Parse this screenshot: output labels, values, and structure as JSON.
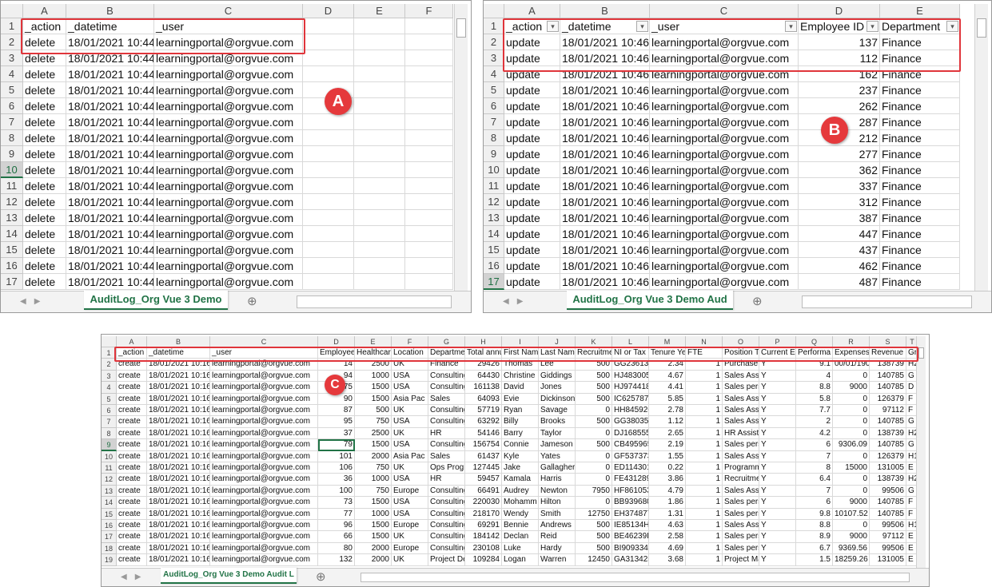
{
  "panels": [
    {
      "badge": "A",
      "tab": "AuditLog_Org Vue 3 Demo",
      "columns": [
        "A",
        "B",
        "C",
        "D",
        "E",
        "F"
      ],
      "row_numbers": [
        "1",
        "2",
        "3",
        "4",
        "5",
        "6",
        "7",
        "8",
        "9",
        "10",
        "11",
        "12",
        "13",
        "14",
        "15",
        "16",
        "17"
      ],
      "rows": [
        [
          "_action",
          "_datetime",
          "_user",
          "",
          "",
          ""
        ],
        [
          "delete",
          "18/01/2021 10:44",
          "learningportal@orgvue.com",
          "",
          "",
          ""
        ],
        [
          "delete",
          "18/01/2021 10:44",
          "learningportal@orgvue.com",
          "",
          "",
          ""
        ],
        [
          "delete",
          "18/01/2021 10:44",
          "learningportal@orgvue.com",
          "",
          "",
          ""
        ],
        [
          "delete",
          "18/01/2021 10:44",
          "learningportal@orgvue.com",
          "",
          "",
          ""
        ],
        [
          "delete",
          "18/01/2021 10:44",
          "learningportal@orgvue.com",
          "",
          "",
          ""
        ],
        [
          "delete",
          "18/01/2021 10:44",
          "learningportal@orgvue.com",
          "",
          "",
          ""
        ],
        [
          "delete",
          "18/01/2021 10:44",
          "learningportal@orgvue.com",
          "",
          "",
          ""
        ],
        [
          "delete",
          "18/01/2021 10:44",
          "learningportal@orgvue.com",
          "",
          "",
          ""
        ],
        [
          "delete",
          "18/01/2021 10:44",
          "learningportal@orgvue.com",
          "",
          "",
          ""
        ],
        [
          "delete",
          "18/01/2021 10:44",
          "learningportal@orgvue.com",
          "",
          "",
          ""
        ],
        [
          "delete",
          "18/01/2021 10:44",
          "learningportal@orgvue.com",
          "",
          "",
          ""
        ],
        [
          "delete",
          "18/01/2021 10:44",
          "learningportal@orgvue.com",
          "",
          "",
          ""
        ],
        [
          "delete",
          "18/01/2021 10:44",
          "learningportal@orgvue.com",
          "",
          "",
          ""
        ],
        [
          "delete",
          "18/01/2021 10:44",
          "learningportal@orgvue.com",
          "",
          "",
          ""
        ],
        [
          "delete",
          "18/01/2021 10:44",
          "learningportal@orgvue.com",
          "",
          "",
          ""
        ],
        [
          "delete",
          "18/01/2021 10:44",
          "learningportal@orgvue.com",
          "",
          "",
          ""
        ]
      ]
    },
    {
      "badge": "B",
      "tab": "AuditLog_Org Vue 3 Demo Aud",
      "columns": [
        "A",
        "B",
        "C",
        "D",
        "E"
      ],
      "row_numbers": [
        "1",
        "2",
        "3",
        "4",
        "5",
        "6",
        "7",
        "8",
        "9",
        "10",
        "11",
        "12",
        "13",
        "14",
        "15",
        "16",
        "17"
      ],
      "rows": [
        [
          "_action",
          "_datetime",
          "_user",
          "Employee ID",
          "Department"
        ],
        [
          "update",
          "18/01/2021 10:46",
          "learningportal@orgvue.com",
          "137",
          "Finance"
        ],
        [
          "update",
          "18/01/2021 10:46",
          "learningportal@orgvue.com",
          "112",
          "Finance"
        ],
        [
          "update",
          "18/01/2021 10:46",
          "learningportal@orgvue.com",
          "162",
          "Finance"
        ],
        [
          "update",
          "18/01/2021 10:46",
          "learningportal@orgvue.com",
          "237",
          "Finance"
        ],
        [
          "update",
          "18/01/2021 10:46",
          "learningportal@orgvue.com",
          "262",
          "Finance"
        ],
        [
          "update",
          "18/01/2021 10:46",
          "learningportal@orgvue.com",
          "287",
          "Finance"
        ],
        [
          "update",
          "18/01/2021 10:46",
          "learningportal@orgvue.com",
          "212",
          "Finance"
        ],
        [
          "update",
          "18/01/2021 10:46",
          "learningportal@orgvue.com",
          "277",
          "Finance"
        ],
        [
          "update",
          "18/01/2021 10:46",
          "learningportal@orgvue.com",
          "362",
          "Finance"
        ],
        [
          "update",
          "18/01/2021 10:46",
          "learningportal@orgvue.com",
          "337",
          "Finance"
        ],
        [
          "update",
          "18/01/2021 10:46",
          "learningportal@orgvue.com",
          "312",
          "Finance"
        ],
        [
          "update",
          "18/01/2021 10:46",
          "learningportal@orgvue.com",
          "387",
          "Finance"
        ],
        [
          "update",
          "18/01/2021 10:46",
          "learningportal@orgvue.com",
          "447",
          "Finance"
        ],
        [
          "update",
          "18/01/2021 10:46",
          "learningportal@orgvue.com",
          "437",
          "Finance"
        ],
        [
          "update",
          "18/01/2021 10:46",
          "learningportal@orgvue.com",
          "462",
          "Finance"
        ],
        [
          "update",
          "18/01/2021 10:46",
          "learningportal@orgvue.com",
          "487",
          "Finance"
        ]
      ]
    },
    {
      "badge": "C",
      "tab": "AuditLog_Org Vue 3 Demo Audit L",
      "columns": [
        "A",
        "B",
        "C",
        "D",
        "E",
        "F",
        "G",
        "H",
        "I",
        "J",
        "K",
        "L",
        "M",
        "N",
        "O",
        "P",
        "Q",
        "R",
        "S",
        "T"
      ],
      "row_numbers": [
        "1",
        "2",
        "3",
        "4",
        "5",
        "6",
        "7",
        "8",
        "9",
        "10",
        "11",
        "12",
        "13",
        "14",
        "15",
        "16",
        "17",
        "18",
        "19"
      ],
      "rows": [
        [
          "_action",
          "_datetime",
          "_user",
          "Employee",
          "Healthcar",
          "Location",
          "Departme",
          "Total annu",
          "First Nam",
          "Last Name",
          "Recruitme",
          "NI or Tax r",
          "Tenure Ye",
          "FTE",
          "Position T",
          "Current Er",
          "Performa",
          "Expenses",
          "Revenue",
          "Gr"
        ],
        [
          "create",
          "18/01/2021 10:16",
          "learningportal@orgvue.com",
          "14",
          "2500",
          "UK",
          "Finance",
          "29426",
          "Thomas",
          "Lee",
          "500",
          "GG236139",
          "2.34",
          "1",
          "Purchase l",
          "Y",
          "9.1",
          "00/01/190",
          "138739",
          "H2"
        ],
        [
          "create",
          "18/01/2021 10:16",
          "learningportal@orgvue.com",
          "94",
          "1000",
          "USA",
          "Consulting",
          "64430",
          "Christine",
          "Giddings",
          "500",
          "HJ483005",
          "4.67",
          "1",
          "Sales Assi",
          "Y",
          "4",
          "0",
          "140785",
          "G"
        ],
        [
          "create",
          "18/01/2021 10:16",
          "learningportal@orgvue.com",
          "75",
          "1500",
          "USA",
          "Consulting",
          "161138",
          "David",
          "Jones",
          "500",
          "HJ974418",
          "4.41",
          "1",
          "Sales pers",
          "Y",
          "8.8",
          "9000",
          "140785",
          "D"
        ],
        [
          "create",
          "18/01/2021 10:16",
          "learningportal@orgvue.com",
          "90",
          "1500",
          "Asia Pac",
          "Sales",
          "64093",
          "Evie",
          "Dickinson",
          "500",
          "IC625787",
          "5.85",
          "1",
          "Sales Assi",
          "Y",
          "5.8",
          "0",
          "126379",
          "F"
        ],
        [
          "create",
          "18/01/2021 10:16",
          "learningportal@orgvue.com",
          "87",
          "500",
          "UK",
          "Consulting",
          "57719",
          "Ryan",
          "Savage",
          "0",
          "HH845926",
          "2.78",
          "1",
          "Sales Assi",
          "Y",
          "7.7",
          "0",
          "97112",
          "F"
        ],
        [
          "create",
          "18/01/2021 10:16",
          "learningportal@orgvue.com",
          "95",
          "750",
          "USA",
          "Consulting",
          "63292",
          "Billy",
          "Brooks",
          "500",
          "GG380359",
          "1.12",
          "1",
          "Sales Assi",
          "Y",
          "2",
          "0",
          "140785",
          "G"
        ],
        [
          "create",
          "18/01/2021 10:16",
          "learningportal@orgvue.com",
          "37",
          "2500",
          "UK",
          "HR",
          "54146",
          "Barry",
          "Taylor",
          "0",
          "DJ168555",
          "2.65",
          "1",
          "HR Assista",
          "Y",
          "4.2",
          "0",
          "138739",
          "H2"
        ],
        [
          "create",
          "18/01/2021 10:16",
          "learningportal@orgvue.com",
          "79",
          "1500",
          "USA",
          "Consulting",
          "156754",
          "Connie",
          "Jameson",
          "500",
          "CB495965",
          "2.19",
          "1",
          "Sales pers",
          "Y",
          "6",
          "9306.09",
          "140785",
          "G"
        ],
        [
          "create",
          "18/01/2021 10:16",
          "learningportal@orgvue.com",
          "101",
          "2000",
          "Asia Pac",
          "Sales",
          "61437",
          "Kyle",
          "Yates",
          "0",
          "GF537373",
          "1.55",
          "1",
          "Sales Assi",
          "Y",
          "7",
          "0",
          "126379",
          "H1"
        ],
        [
          "create",
          "18/01/2021 10:16",
          "learningportal@orgvue.com",
          "106",
          "750",
          "UK",
          "Ops Progr",
          "127445",
          "Jake",
          "Gallagher",
          "0",
          "ED114301",
          "0.22",
          "1",
          "Programm",
          "Y",
          "8",
          "15000",
          "131005",
          "E"
        ],
        [
          "create",
          "18/01/2021 10:16",
          "learningportal@orgvue.com",
          "36",
          "1000",
          "USA",
          "HR",
          "59457",
          "Kamala",
          "Harris",
          "0",
          "FE431289",
          "3.86",
          "1",
          "Recruitme",
          "Y",
          "6.4",
          "0",
          "138739",
          "H2"
        ],
        [
          "create",
          "18/01/2021 10:16",
          "learningportal@orgvue.com",
          "100",
          "750",
          "Europe",
          "Consulting",
          "66491",
          "Audrey",
          "Newton",
          "7950",
          "HF861053",
          "4.79",
          "1",
          "Sales Assi",
          "Y",
          "7",
          "0",
          "99506",
          "G"
        ],
        [
          "create",
          "18/01/2021 10:16",
          "learningportal@orgvue.com",
          "73",
          "1500",
          "USA",
          "Consulting",
          "220030",
          "Mohamm",
          "Hilton",
          "0",
          "BB939680",
          "1.86",
          "1",
          "Sales pers",
          "Y",
          "6",
          "9000",
          "140785",
          "F"
        ],
        [
          "create",
          "18/01/2021 10:16",
          "learningportal@orgvue.com",
          "77",
          "1000",
          "USA",
          "Consulting",
          "218170",
          "Wendy",
          "Smith",
          "12750",
          "EH374877",
          "1.31",
          "1",
          "Sales pers",
          "Y",
          "9.8",
          "10107.52",
          "140785",
          "F"
        ],
        [
          "create",
          "18/01/2021 10:16",
          "learningportal@orgvue.com",
          "96",
          "1500",
          "Europe",
          "Consulting",
          "69291",
          "Bennie",
          "Andrews",
          "500",
          "IE85134H",
          "4.63",
          "1",
          "Sales Assi",
          "Y",
          "8.8",
          "0",
          "99506",
          "H1"
        ],
        [
          "create",
          "18/01/2021 10:16",
          "learningportal@orgvue.com",
          "66",
          "1500",
          "UK",
          "Consulting",
          "184142",
          "Declan",
          "Reid",
          "500",
          "BE46239I",
          "2.58",
          "1",
          "Sales pers",
          "Y",
          "8.9",
          "9000",
          "97112",
          "E"
        ],
        [
          "create",
          "18/01/2021 10:16",
          "learningportal@orgvue.com",
          "80",
          "2000",
          "Europe",
          "Consulting",
          "230108",
          "Luke",
          "Hardy",
          "500",
          "BI909334J",
          "4.69",
          "1",
          "Sales pers",
          "Y",
          "6.7",
          "9369.56",
          "99506",
          "E"
        ],
        [
          "create",
          "18/01/2021 10:16",
          "learningportal@orgvue.com",
          "132",
          "2000",
          "UK",
          "Project De",
          "109284",
          "Logan",
          "Warren",
          "12450",
          "GA313425",
          "3.68",
          "1",
          "Project Ma",
          "Y",
          "1.5",
          "18259.26",
          "131005",
          "E"
        ]
      ]
    }
  ]
}
